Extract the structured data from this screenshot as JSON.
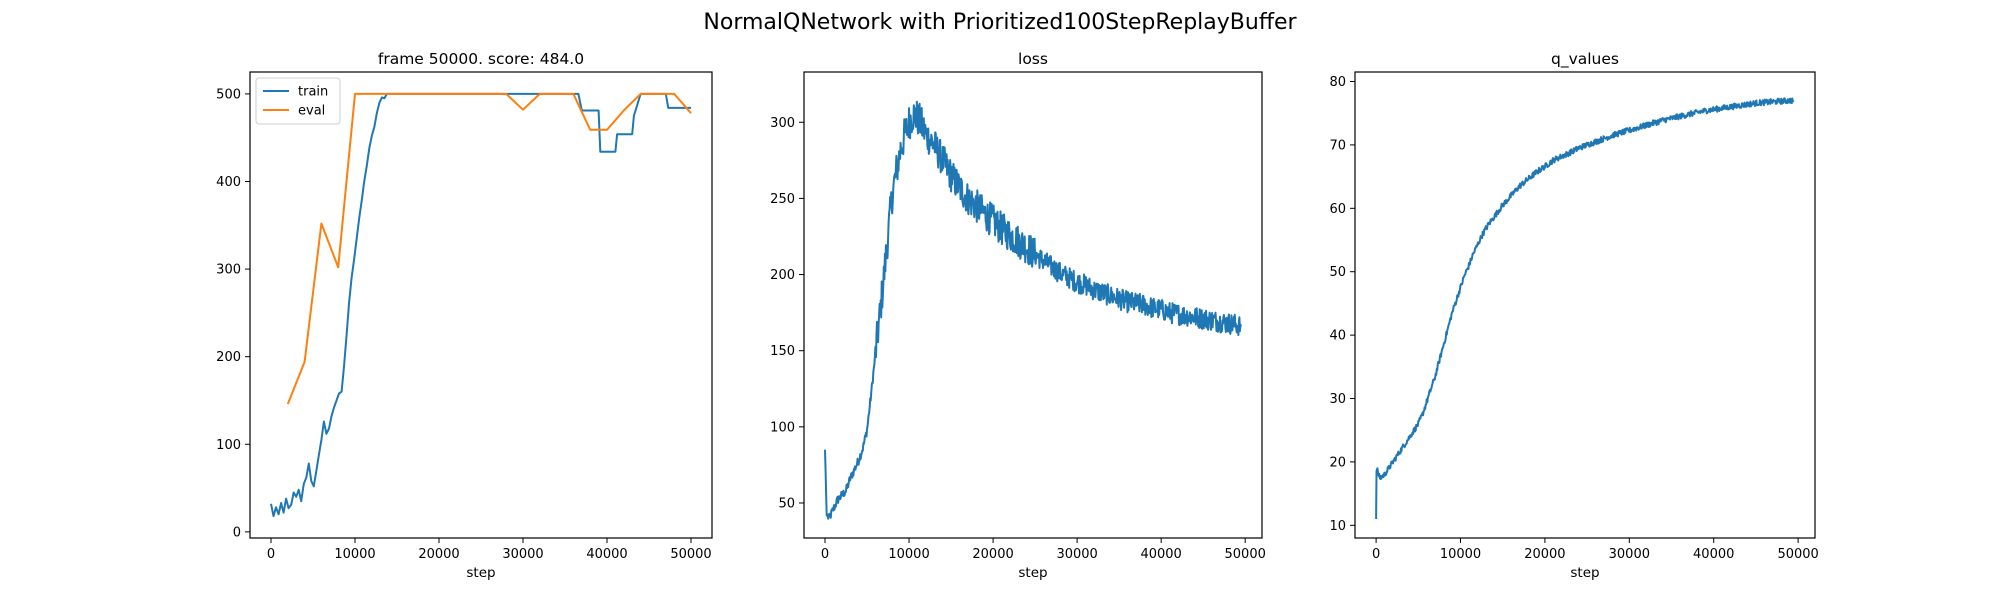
{
  "figure": {
    "suptitle": "NormalQNetwork with Prioritized100StepReplayBuffer"
  },
  "colors": {
    "series_blue": "#1f77b4",
    "series_orange": "#ff7f0e",
    "axis": "#000000",
    "background": "#ffffff"
  },
  "chart_data": [
    {
      "type": "line",
      "title": "frame 50000. score: 484.0",
      "xlabel": "step",
      "ylabel": "",
      "xlim": [
        -2500,
        52500
      ],
      "ylim": [
        -7,
        525
      ],
      "xticks": [
        0,
        10000,
        20000,
        30000,
        40000,
        50000
      ],
      "yticks": [
        0,
        100,
        200,
        300,
        400,
        500
      ],
      "grid": false,
      "legend": "top-left",
      "series": [
        {
          "name": "train",
          "color": "#1f77b4",
          "x": [
            0,
            300,
            600,
            900,
            1200,
            1500,
            1800,
            2100,
            2400,
            2700,
            3000,
            3300,
            3600,
            3900,
            4200,
            4500,
            4800,
            5100,
            5400,
            5700,
            6000,
            6300,
            6600,
            6900,
            7200,
            7500,
            7800,
            8100,
            8400,
            8700,
            9000,
            9300,
            9600,
            9900,
            10200,
            10500,
            10800,
            11100,
            11400,
            11700,
            12000,
            12300,
            12600,
            12900,
            13200,
            13500,
            13800,
            14100,
            14400,
            14700,
            15000,
            28000,
            32000,
            36000,
            36600,
            37000,
            38500,
            39000,
            39200,
            41000,
            41200,
            43000,
            43200,
            44000,
            44500,
            45000,
            46000,
            47000,
            47300,
            49000,
            49300,
            49600,
            50000
          ],
          "y": [
            32,
            18,
            28,
            20,
            33,
            22,
            38,
            27,
            31,
            45,
            40,
            48,
            35,
            55,
            62,
            78,
            58,
            52,
            70,
            88,
            105,
            126,
            112,
            118,
            132,
            142,
            150,
            158,
            160,
            190,
            225,
            262,
            290,
            312,
            335,
            358,
            378,
            400,
            418,
            438,
            452,
            462,
            478,
            490,
            496,
            495,
            500,
            500,
            500,
            500,
            500,
            500,
            500,
            500,
            500,
            481,
            481,
            481,
            434,
            434,
            454,
            454,
            475,
            500,
            500,
            500,
            500,
            500,
            484,
            484,
            484,
            484,
            484
          ]
        },
        {
          "name": "eval",
          "color": "#ff7f0e",
          "x": [
            2000,
            4000,
            6000,
            8000,
            10000,
            12000,
            14000,
            16000,
            18000,
            20000,
            22000,
            24000,
            26000,
            28000,
            30000,
            32000,
            34000,
            36000,
            38000,
            40000,
            42000,
            44000,
            46000,
            48000,
            50000
          ],
          "y": [
            146,
            194,
            352,
            302,
            500,
            500,
            500,
            500,
            500,
            500,
            500,
            500,
            500,
            500,
            482,
            500,
            500,
            500,
            459,
            459,
            481,
            500,
            500,
            500,
            478
          ]
        }
      ]
    },
    {
      "type": "line",
      "title": "loss",
      "xlabel": "step",
      "ylabel": "",
      "xlim": [
        -2500,
        52000
      ],
      "ylim": [
        27,
        333
      ],
      "xticks": [
        0,
        10000,
        20000,
        30000,
        40000,
        50000
      ],
      "yticks": [
        50,
        100,
        150,
        200,
        250,
        300
      ],
      "grid": false,
      "legend": "none",
      "series": [
        {
          "name": "",
          "color": "#1f77b4",
          "x": [
            0,
            200,
            500,
            1000,
            1500,
            2000,
            2500,
            3000,
            3500,
            4000,
            4500,
            5000,
            5500,
            6000,
            6500,
            7000,
            7500,
            8000,
            8500,
            9000,
            9500,
            10000,
            10500,
            11000,
            11500,
            12000,
            13000,
            14000,
            15000,
            16000,
            17000,
            18000,
            19000,
            20000,
            21000,
            22000,
            23000,
            24000,
            25000,
            26000,
            27000,
            28000,
            29000,
            30000,
            31000,
            32000,
            33000,
            34000,
            35000,
            36000,
            37000,
            38000,
            39000,
            40000,
            41000,
            42000,
            43000,
            44000,
            45000,
            46000,
            47000,
            48000,
            49000,
            49500
          ],
          "y": [
            85,
            42,
            40,
            46,
            52,
            55,
            58,
            66,
            72,
            78,
            86,
            98,
            122,
            148,
            172,
            198,
            226,
            252,
            268,
            282,
            292,
            300,
            305,
            303,
            298,
            292,
            285,
            275,
            265,
            257,
            250,
            245,
            240,
            235,
            230,
            226,
            222,
            218,
            213,
            209,
            205,
            201,
            198,
            195,
            193,
            190,
            188,
            186,
            184,
            182,
            181,
            180,
            178,
            177,
            175,
            174,
            173,
            172,
            171,
            170,
            169,
            168,
            167,
            166
          ]
        }
      ]
    },
    {
      "type": "line",
      "title": "q_values",
      "xlabel": "step",
      "ylabel": "",
      "xlim": [
        -2500,
        52000
      ],
      "ylim": [
        8,
        81.5
      ],
      "xticks": [
        0,
        10000,
        20000,
        30000,
        40000,
        50000
      ],
      "yticks": [
        10,
        20,
        30,
        40,
        50,
        60,
        70,
        80
      ],
      "grid": false,
      "legend": "none",
      "series": [
        {
          "name": "",
          "color": "#1f77b4",
          "x": [
            0,
            50,
            150,
            300,
            500,
            1000,
            1500,
            2000,
            2500,
            3000,
            3500,
            4000,
            4500,
            5000,
            5500,
            6000,
            6500,
            7000,
            7500,
            8000,
            8500,
            9000,
            9500,
            10000,
            10500,
            11000,
            11500,
            12000,
            12500,
            13000,
            13500,
            14000,
            15000,
            16000,
            17000,
            18000,
            19000,
            20000,
            21000,
            22000,
            23000,
            24000,
            25000,
            26000,
            27000,
            28000,
            29000,
            30000,
            31000,
            32000,
            33000,
            34000,
            35000,
            36000,
            37000,
            38000,
            39000,
            40000,
            41000,
            42000,
            43000,
            44000,
            45000,
            46000,
            47000,
            48000,
            49000,
            49500
          ],
          "y": [
            11,
            18.5,
            19,
            17.8,
            17.5,
            18,
            19,
            20,
            21,
            22,
            23,
            24,
            25,
            26,
            27.5,
            29.5,
            31.5,
            33.5,
            36,
            38.5,
            41,
            43.5,
            45.5,
            47.5,
            49.5,
            51,
            52.8,
            54.2,
            55.6,
            56.8,
            57.8,
            58.7,
            60.5,
            62,
            63.5,
            64.6,
            65.7,
            66.6,
            67.6,
            68.2,
            68.8,
            69.5,
            70,
            70.5,
            71,
            71.5,
            71.9,
            72.3,
            72.7,
            73.1,
            73.5,
            73.9,
            74.2,
            74.5,
            74.8,
            75.1,
            75.4,
            75.6,
            75.8,
            76,
            76.2,
            76.4,
            76.6,
            76.7,
            76.8,
            76.9,
            77,
            77
          ]
        }
      ]
    }
  ]
}
